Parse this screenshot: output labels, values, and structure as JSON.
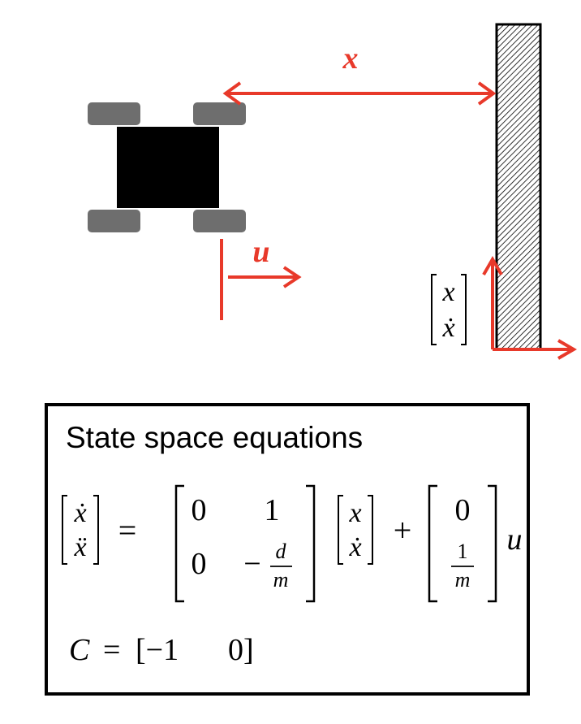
{
  "diagram": {
    "labels": {
      "distance": "x",
      "input": "u",
      "state_top": "x",
      "state_bottom": "ẋ"
    },
    "colors": {
      "accent": "#e8392a",
      "robot_body": "#000000",
      "wheel": "#6e6e6e",
      "wall_hatch": "#000000"
    }
  },
  "equations": {
    "title": "State space equations",
    "lhs": [
      "ẋ",
      "ẍ"
    ],
    "equals": "=",
    "A": [
      [
        "0",
        "1"
      ],
      [
        "0",
        "−"
      ]
    ],
    "A_fraction": {
      "num": "d",
      "den": "m"
    },
    "state": [
      "x",
      "ẋ"
    ],
    "plus": "+",
    "B_top": "0",
    "B_fraction": {
      "num": "1",
      "den": "m"
    },
    "input": "u",
    "C_label": "C",
    "C_equals": "=",
    "C_row": [
      "[−1",
      "0]"
    ]
  }
}
